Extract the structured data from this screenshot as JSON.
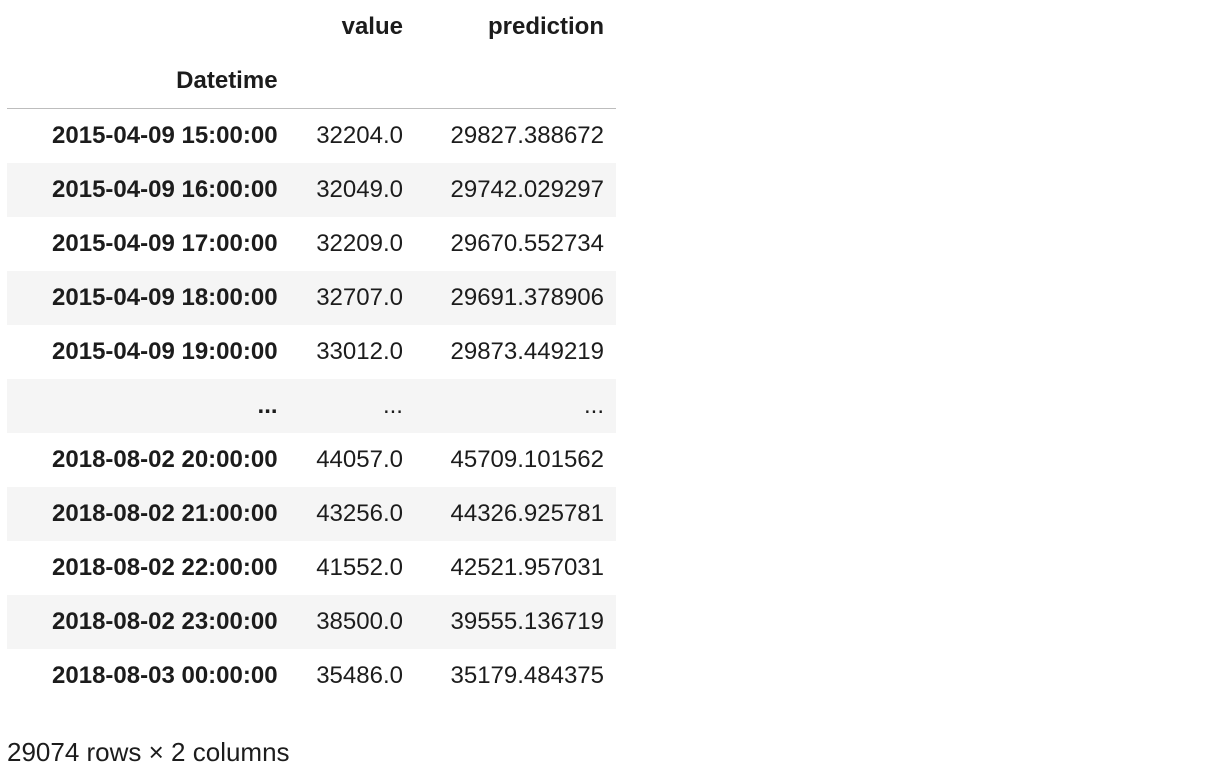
{
  "table": {
    "columns": [
      "value",
      "prediction"
    ],
    "index_name": "Datetime",
    "rows": [
      {
        "index": "2015-04-09 15:00:00",
        "value": "32204.0",
        "prediction": "29827.388672"
      },
      {
        "index": "2015-04-09 16:00:00",
        "value": "32049.0",
        "prediction": "29742.029297"
      },
      {
        "index": "2015-04-09 17:00:00",
        "value": "32209.0",
        "prediction": "29670.552734"
      },
      {
        "index": "2015-04-09 18:00:00",
        "value": "32707.0",
        "prediction": "29691.378906"
      },
      {
        "index": "2015-04-09 19:00:00",
        "value": "33012.0",
        "prediction": "29873.449219"
      },
      {
        "index": "...",
        "value": "...",
        "prediction": "..."
      },
      {
        "index": "2018-08-02 20:00:00",
        "value": "44057.0",
        "prediction": "45709.101562"
      },
      {
        "index": "2018-08-02 21:00:00",
        "value": "43256.0",
        "prediction": "44326.925781"
      },
      {
        "index": "2018-08-02 22:00:00",
        "value": "41552.0",
        "prediction": "42521.957031"
      },
      {
        "index": "2018-08-02 23:00:00",
        "value": "38500.0",
        "prediction": "39555.136719"
      },
      {
        "index": "2018-08-03 00:00:00",
        "value": "35486.0",
        "prediction": "35179.484375"
      }
    ]
  },
  "summary": "29074 rows × 2 columns"
}
